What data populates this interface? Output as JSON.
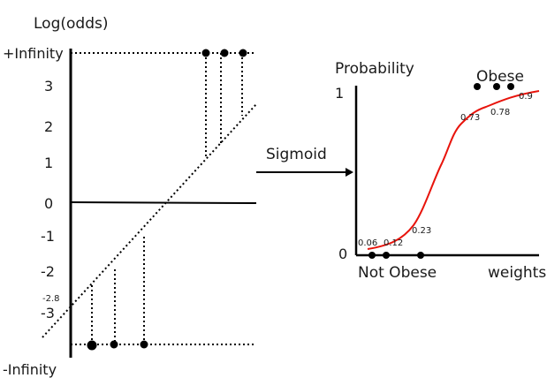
{
  "left_panel": {
    "title": "Log(odds)",
    "ticks": {
      "pos_inf": "+Infinity",
      "t3": "3",
      "t2": "2",
      "t1": "1",
      "t0": "0",
      "tm1": "-1",
      "tm2": "-2",
      "tm28": "-2.8",
      "tm3": "-3",
      "neg_inf": "-Infinity"
    }
  },
  "arrow": {
    "label": "Sigmoid"
  },
  "right_panel": {
    "title": "Probability",
    "y_one": "1",
    "y_zero": "0",
    "x_left_label": "Not Obese",
    "x_right_label": "weights",
    "obese_label": "Obese",
    "values": {
      "p1": "0.06",
      "p2": "0.12",
      "p3": "0.23",
      "p4": "0.73",
      "p5": "0.78",
      "p6": "0.9"
    }
  },
  "colors": {
    "ink": "#000000",
    "curve": "#e8140c"
  }
}
